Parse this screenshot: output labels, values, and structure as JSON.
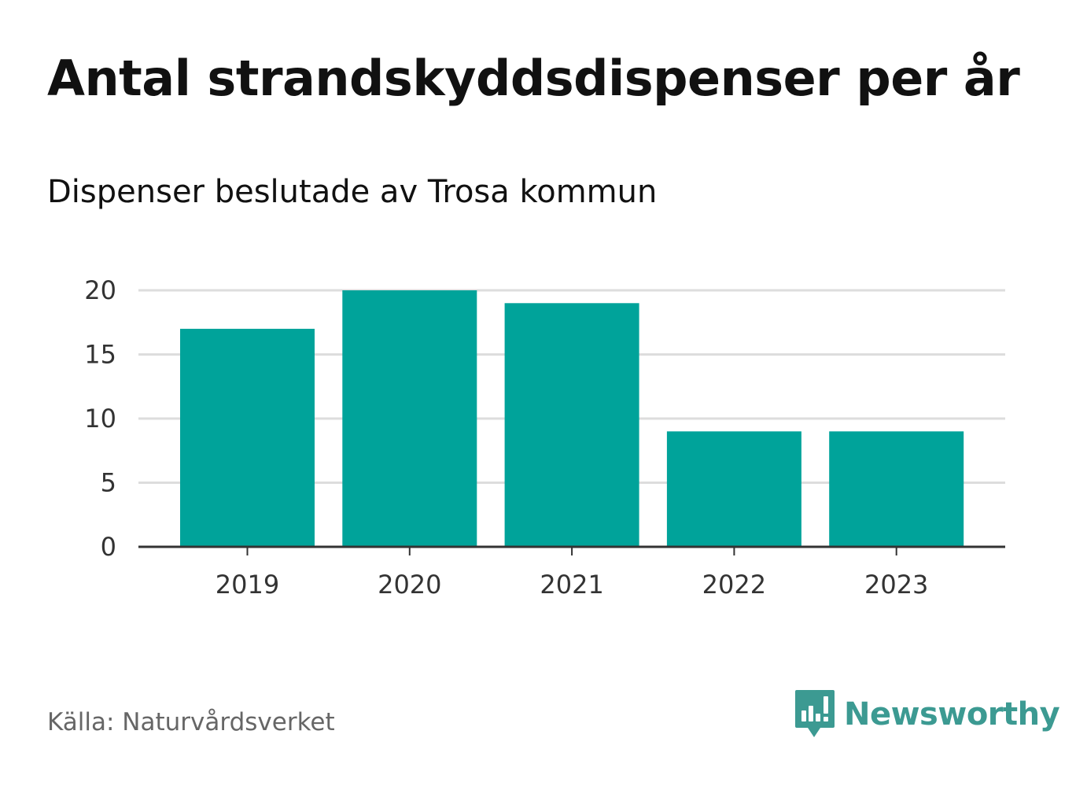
{
  "title": "Antal strandskyddsdispenser per år",
  "subtitle": "Dispenser beslutade av Trosa kommun",
  "source": "Källa: Naturvårdsverket",
  "brand": {
    "name": "Newsworthy",
    "icon": "newsworthy-logo-icon",
    "color": "#3c9a92"
  },
  "colors": {
    "bar": "#00a39a",
    "grid": "#dddddd",
    "axis": "#333333"
  },
  "chart_data": {
    "type": "bar",
    "title": "Antal strandskyddsdispenser per år",
    "subtitle": "Dispenser beslutade av Trosa kommun",
    "categories": [
      "2019",
      "2020",
      "2021",
      "2022",
      "2023"
    ],
    "values": [
      17,
      20,
      19,
      9,
      9
    ],
    "xlabel": "",
    "ylabel": "",
    "ylim": [
      0,
      20
    ],
    "yticks": [
      0,
      5,
      10,
      15,
      20
    ],
    "grid": true,
    "legend": "none"
  }
}
